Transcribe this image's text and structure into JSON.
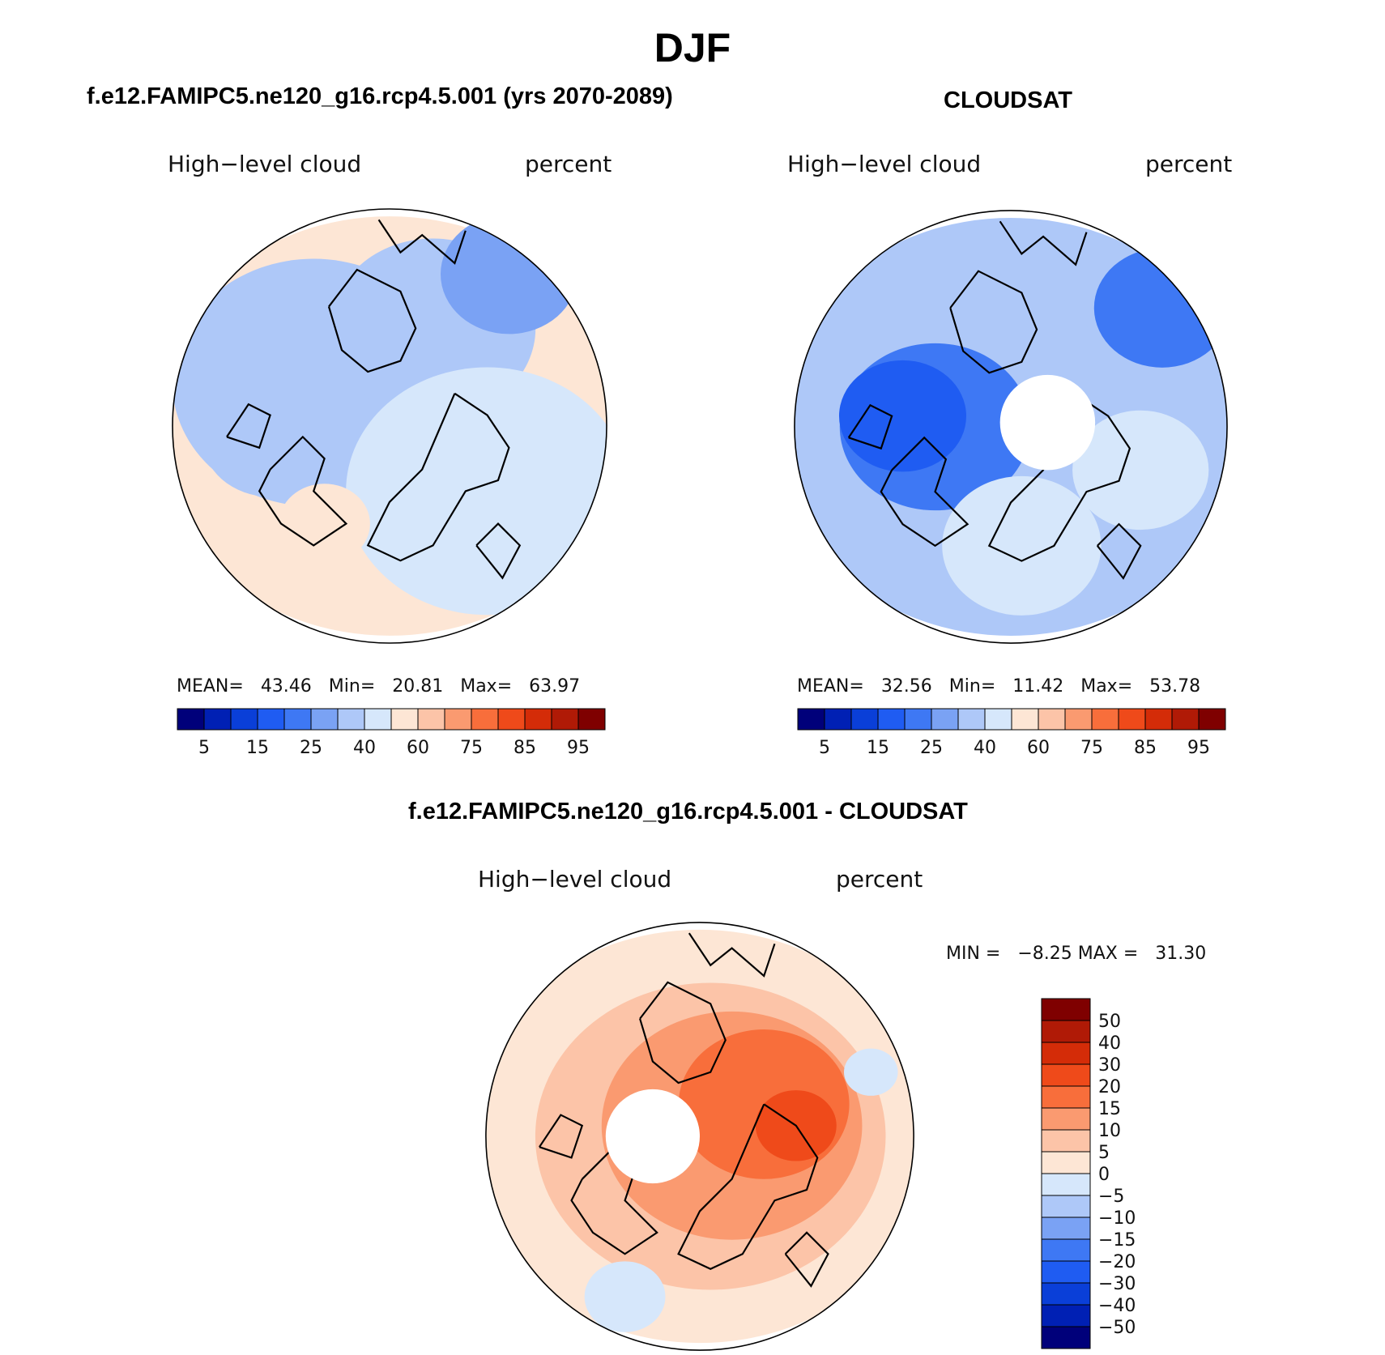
{
  "main_title": "DJF",
  "colors": {
    "seq": [
      "#00007a",
      "#0020b4",
      "#0a3fd8",
      "#1f5cf2",
      "#3e78f4",
      "#7aa2f4",
      "#aec8f8",
      "#d6e7fb",
      "#fde6d5",
      "#fcc4a8",
      "#fa9a70",
      "#f86e3b",
      "#ef4a1a",
      "#d42c08",
      "#b01a06",
      "#7f0000"
    ],
    "diff": [
      "#00007a",
      "#0020b4",
      "#0a3fd8",
      "#1f5cf2",
      "#3e78f4",
      "#7aa2f4",
      "#aec8f8",
      "#d6e7fb",
      "#fde6d5",
      "#fcc4a8",
      "#fa9a70",
      "#f86e3b",
      "#ef4a1a",
      "#d42c08",
      "#b01a06",
      "#7f0000"
    ]
  },
  "panels": {
    "model": {
      "title": "f.e12.FAMIPC5.ne120_g16.rcp4.5.001 (yrs 2070-2089)",
      "variable": "High−level cloud",
      "units": "percent",
      "mean_label": "MEAN=",
      "mean": "43.46",
      "min_label": "Min=",
      "min": "20.81",
      "max_label": "Max=",
      "max": "63.97"
    },
    "obs": {
      "title": "CLOUDSAT",
      "variable": "High−level cloud",
      "units": "percent",
      "mean_label": "MEAN=",
      "mean": "32.56",
      "min_label": "Min=",
      "min": "11.42",
      "max_label": "Max=",
      "max": "53.78"
    },
    "diff": {
      "title": "f.e12.FAMIPC5.ne120_g16.rcp4.5.001 - CLOUDSAT",
      "variable": "High−level cloud",
      "units": "percent",
      "minmax": "MIN =   −8.25 MAX =   31.30"
    }
  },
  "chart_data": [
    {
      "type": "heatmap",
      "title": "f.e12.FAMIPC5.ne120_g16.rcp4.5.001 (yrs 2070-2089)",
      "subtitle": "High-level cloud (percent)",
      "projection": "north polar stereographic",
      "stats": {
        "mean": 43.46,
        "min": 20.81,
        "max": 63.97
      },
      "colorbar_tick_labels": [
        "5",
        "15",
        "25",
        "40",
        "60",
        "75",
        "85",
        "95"
      ],
      "fields": [
        {
          "level": 50,
          "x": 0.0,
          "y": 0.0,
          "r": 1.05
        },
        {
          "level": 35,
          "x": -0.35,
          "y": -0.2,
          "r": 0.62
        },
        {
          "level": 35,
          "x": 0.2,
          "y": -0.45,
          "r": 0.45
        },
        {
          "level": 30,
          "x": -0.55,
          "y": 0.05,
          "r": 0.3
        },
        {
          "level": 25,
          "x": 0.55,
          "y": -0.7,
          "r": 0.3
        },
        {
          "level": 45,
          "x": 0.45,
          "y": 0.3,
          "r": 0.62
        },
        {
          "level": 50,
          "x": -0.3,
          "y": 0.45,
          "r": 0.2
        }
      ]
    },
    {
      "type": "heatmap",
      "title": "CLOUDSAT",
      "subtitle": "High-level cloud (percent)",
      "projection": "north polar stereographic",
      "stats": {
        "mean": 32.56,
        "min": 11.42,
        "max": 53.78
      },
      "colorbar_tick_labels": [
        "5",
        "15",
        "25",
        "40",
        "60",
        "75",
        "85",
        "95"
      ],
      "fields": [
        {
          "level": 35,
          "x": 0.0,
          "y": 0.0,
          "r": 1.05
        },
        {
          "level": 30,
          "x": -0.2,
          "y": -0.2,
          "r": 0.6
        },
        {
          "level": 20,
          "x": -0.35,
          "y": 0.0,
          "r": 0.42
        },
        {
          "level": 15,
          "x": -0.5,
          "y": -0.05,
          "r": 0.28
        },
        {
          "level": 20,
          "x": 0.7,
          "y": -0.55,
          "r": 0.3
        },
        {
          "level": 40,
          "x": 0.05,
          "y": 0.55,
          "r": 0.35
        },
        {
          "level": 40,
          "x": 0.6,
          "y": 0.2,
          "r": 0.3
        }
      ]
    },
    {
      "type": "heatmap",
      "title": "f.e12.FAMIPC5.ne120_g16.rcp4.5.001 - CLOUDSAT",
      "subtitle": "High-level cloud (percent)",
      "projection": "north polar stereographic",
      "stats": {
        "min": -8.25,
        "max": 31.3
      },
      "colorbar_tick_labels": [
        "50",
        "40",
        "30",
        "20",
        "15",
        "10",
        "5",
        "0",
        "−5",
        "−10",
        "−15",
        "−20",
        "−30",
        "−40",
        "−50"
      ],
      "fields": [
        {
          "level": 3,
          "x": 0.0,
          "y": 0.0,
          "r": 1.05
        },
        {
          "level": 8,
          "x": 0.05,
          "y": 0.0,
          "r": 0.78
        },
        {
          "level": 12,
          "x": 0.15,
          "y": -0.05,
          "r": 0.58
        },
        {
          "level": 18,
          "x": 0.3,
          "y": -0.15,
          "r": 0.38
        },
        {
          "level": 25,
          "x": 0.45,
          "y": -0.05,
          "r": 0.18
        },
        {
          "level": -3,
          "x": -0.35,
          "y": 0.75,
          "r": 0.18
        },
        {
          "level": -3,
          "x": 0.8,
          "y": -0.3,
          "r": 0.12
        }
      ]
    }
  ]
}
